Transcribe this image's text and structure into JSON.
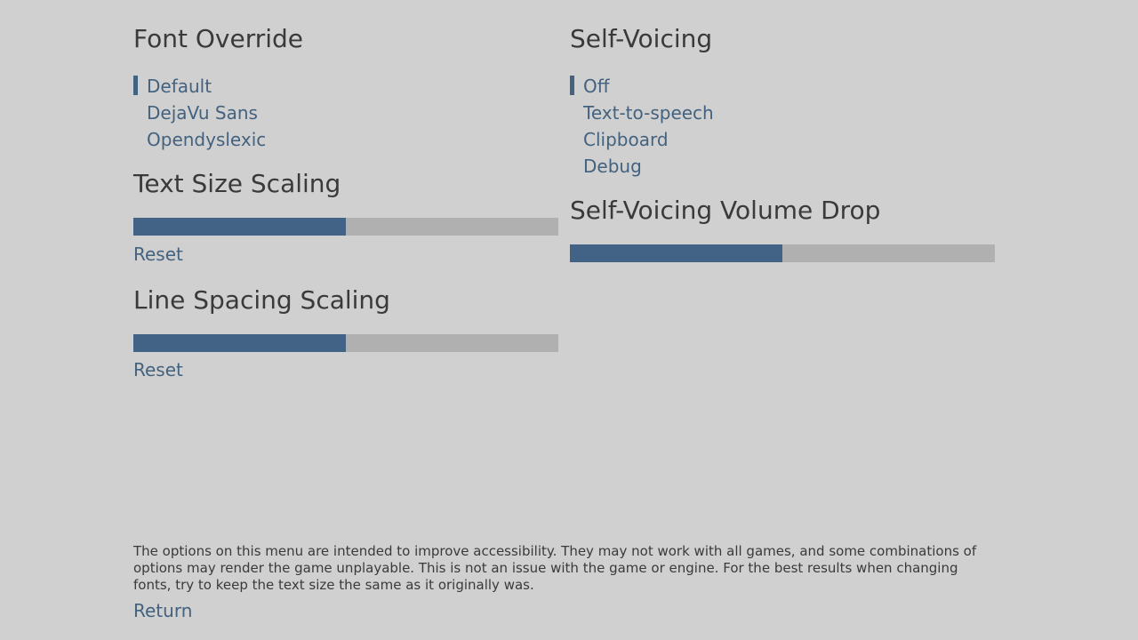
{
  "colors": {
    "background": "#d0d0d0",
    "heading": "#3a3a3a",
    "accent": "#43627f",
    "bar_fill": "#436386",
    "bar_track": "#b0b0b0"
  },
  "font_override": {
    "title": "Font Override",
    "options": [
      "Default",
      "DejaVu Sans",
      "Opendyslexic"
    ],
    "selected": "Default"
  },
  "text_size_scaling": {
    "title": "Text Size Scaling",
    "value": 0.5,
    "reset_label": "Reset"
  },
  "line_spacing_scaling": {
    "title": "Line Spacing Scaling",
    "value": 0.5,
    "reset_label": "Reset"
  },
  "self_voicing": {
    "title": "Self-Voicing",
    "options": [
      "Off",
      "Text-to-speech",
      "Clipboard",
      "Debug"
    ],
    "selected": "Off"
  },
  "self_voicing_volume_drop": {
    "title": "Self-Voicing Volume Drop",
    "value": 0.5
  },
  "footer": {
    "note": "The options on this menu are intended to improve accessibility. They may not work with all games, and some combinations of options may render the game unplayable. This is not an issue with the game or engine. For the best results when changing fonts, try to keep the text size the same as it originally was.",
    "return_label": "Return"
  }
}
